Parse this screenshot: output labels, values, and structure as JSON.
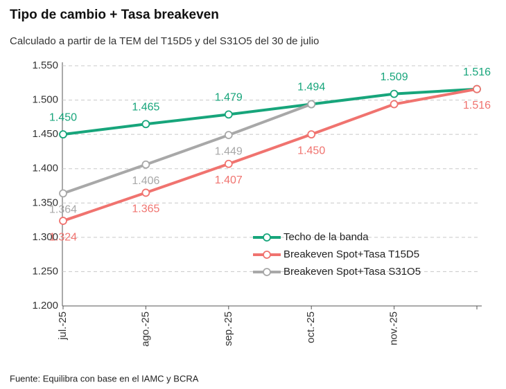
{
  "chart_data": {
    "type": "line",
    "title": "Tipo de cambio + Tasa breakeven",
    "subtitle": "Calculado a partir de la TEM del T15D5 y del S31O5 del 30 de julio",
    "source": "Fuente: Equilibra con base en el IAMC y BCRA",
    "categories": [
      "jul.-25",
      "ago.-25",
      "sep.-25",
      "oct.-25",
      "nov.-25",
      null
    ],
    "series": [
      {
        "name": "Techo de la banda",
        "color": "#17a57b",
        "values": [
          1450,
          1465,
          1479,
          1494,
          1509,
          1516
        ],
        "value_labels": [
          "1.450",
          "1.465",
          "1.479",
          "1.494",
          "1.509",
          "1.516"
        ]
      },
      {
        "name": "Breakeven Spot+Tasa T15D5",
        "color": "#f0736f",
        "values": [
          1324,
          1365,
          1407,
          1450,
          1494,
          1516
        ],
        "value_labels": [
          "1.324",
          "1.365",
          "1.407",
          "1.450",
          null,
          "1.516"
        ]
      },
      {
        "name": "Breakeven Spot+Tasa S31O5",
        "color": "#a8a8a8",
        "values": [
          1364,
          1406,
          1449,
          1494,
          null,
          null
        ],
        "value_labels": [
          "1.364",
          "1.406",
          "1.449",
          null,
          null,
          null
        ]
      }
    ],
    "ylim": [
      1200,
      1550
    ],
    "yticks": [
      {
        "value": 1200,
        "label": "1.200"
      },
      {
        "value": 1250,
        "label": "1.250"
      },
      {
        "value": 1300,
        "label": "1.300"
      },
      {
        "value": 1350,
        "label": "1.350"
      },
      {
        "value": 1400,
        "label": "1.400"
      },
      {
        "value": 1450,
        "label": "1.450"
      },
      {
        "value": 1500,
        "label": "1.500"
      },
      {
        "value": 1550,
        "label": "1.550"
      }
    ],
    "grid": true,
    "legend": "lower right"
  }
}
